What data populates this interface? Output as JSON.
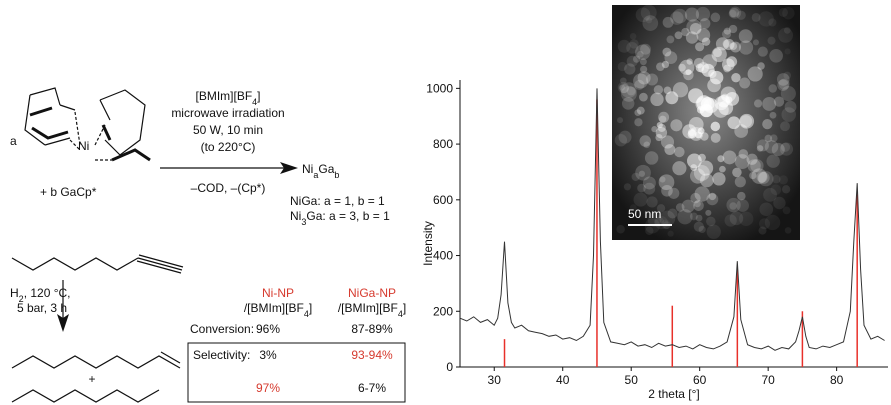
{
  "scheme": {
    "label_a": "a",
    "metal": "Ni",
    "reagent": "+ b GaCp*",
    "conditions": [
      [
        "[BMIm][BF",
        "4",
        "]"
      ],
      [
        "microwave irradiation"
      ],
      [
        "50 W, 10 min"
      ],
      [
        "(to 220°C)"
      ]
    ],
    "byproducts": "–COD, –(Cp*)",
    "product": [
      "Ni",
      "a",
      "Ga",
      "b"
    ],
    "compositions": [
      [
        "NiGa: a = 1, b = 1"
      ],
      [
        "Ni",
        "3",
        "Ga: a = 3, b = 1"
      ]
    ]
  },
  "hydrogenation": {
    "conditions": [
      [
        "H",
        "2",
        ", 120 °C,"
      ],
      [
        "5 bar, 3 h"
      ]
    ],
    "plus": "+",
    "table": {
      "headers": [
        {
          "catalyst": "Ni-NP",
          "medium": [
            "/[BMIm][BF",
            "4",
            "]"
          ]
        },
        {
          "catalyst": "NiGa-NP",
          "medium": [
            "/[BMIm][BF",
            "4",
            "]"
          ]
        }
      ],
      "rows": [
        {
          "label": "Conversion:",
          "cells": [
            "96%",
            "87-89%"
          ]
        },
        {
          "label": "Selectivity:",
          "cells": [
            "3%",
            "93-94%"
          ]
        },
        {
          "cells": [
            "97%",
            "6-7%"
          ]
        }
      ]
    }
  },
  "inset": {
    "scale_bar": "50 nm"
  },
  "chart_data": {
    "type": "line",
    "xlabel": "2 theta [°]",
    "ylabel": "Intensity",
    "x": [
      25,
      26,
      27,
      28,
      29,
      30,
      30.5,
      31,
      31.5,
      32,
      32.5,
      33,
      34,
      35,
      36,
      37,
      38,
      39,
      40,
      41,
      42,
      43,
      44,
      44.5,
      45,
      45.5,
      46,
      47,
      48,
      49,
      50,
      51,
      52,
      53,
      54,
      55,
      56,
      57,
      58,
      59,
      60,
      61,
      62,
      63,
      64,
      65,
      65.5,
      66,
      67,
      68,
      69,
      70,
      71,
      72,
      73,
      74,
      74.5,
      75,
      75.5,
      76,
      77,
      78,
      79,
      80,
      81,
      82,
      82.5,
      83,
      83.5,
      84,
      85,
      86,
      87
    ],
    "series": [
      {
        "color": "#333333",
        "values": [
          175,
          165,
          180,
          160,
          170,
          150,
          175,
          260,
          450,
          230,
          160,
          140,
          150,
          130,
          125,
          120,
          110,
          115,
          100,
          105,
          95,
          110,
          150,
          400,
          1000,
          450,
          160,
          90,
          85,
          80,
          90,
          75,
          80,
          70,
          85,
          75,
          80,
          70,
          75,
          65,
          80,
          70,
          65,
          75,
          90,
          180,
          380,
          170,
          80,
          70,
          65,
          75,
          60,
          70,
          65,
          90,
          130,
          180,
          110,
          70,
          65,
          75,
          70,
          80,
          90,
          200,
          450,
          660,
          350,
          150,
          100,
          110,
          95
        ]
      }
    ],
    "reference": {
      "color": "#e8302a",
      "x": [
        31.5,
        45,
        56,
        65.5,
        75,
        83
      ],
      "values": [
        100,
        960,
        220,
        350,
        200,
        620
      ]
    },
    "xlim": [
      25,
      87.5
    ],
    "ylim": [
      0,
      1030
    ],
    "xticks": [
      30,
      40,
      50,
      60,
      70,
      80
    ],
    "yticks": [
      0,
      200,
      400,
      600,
      800,
      1000
    ]
  }
}
